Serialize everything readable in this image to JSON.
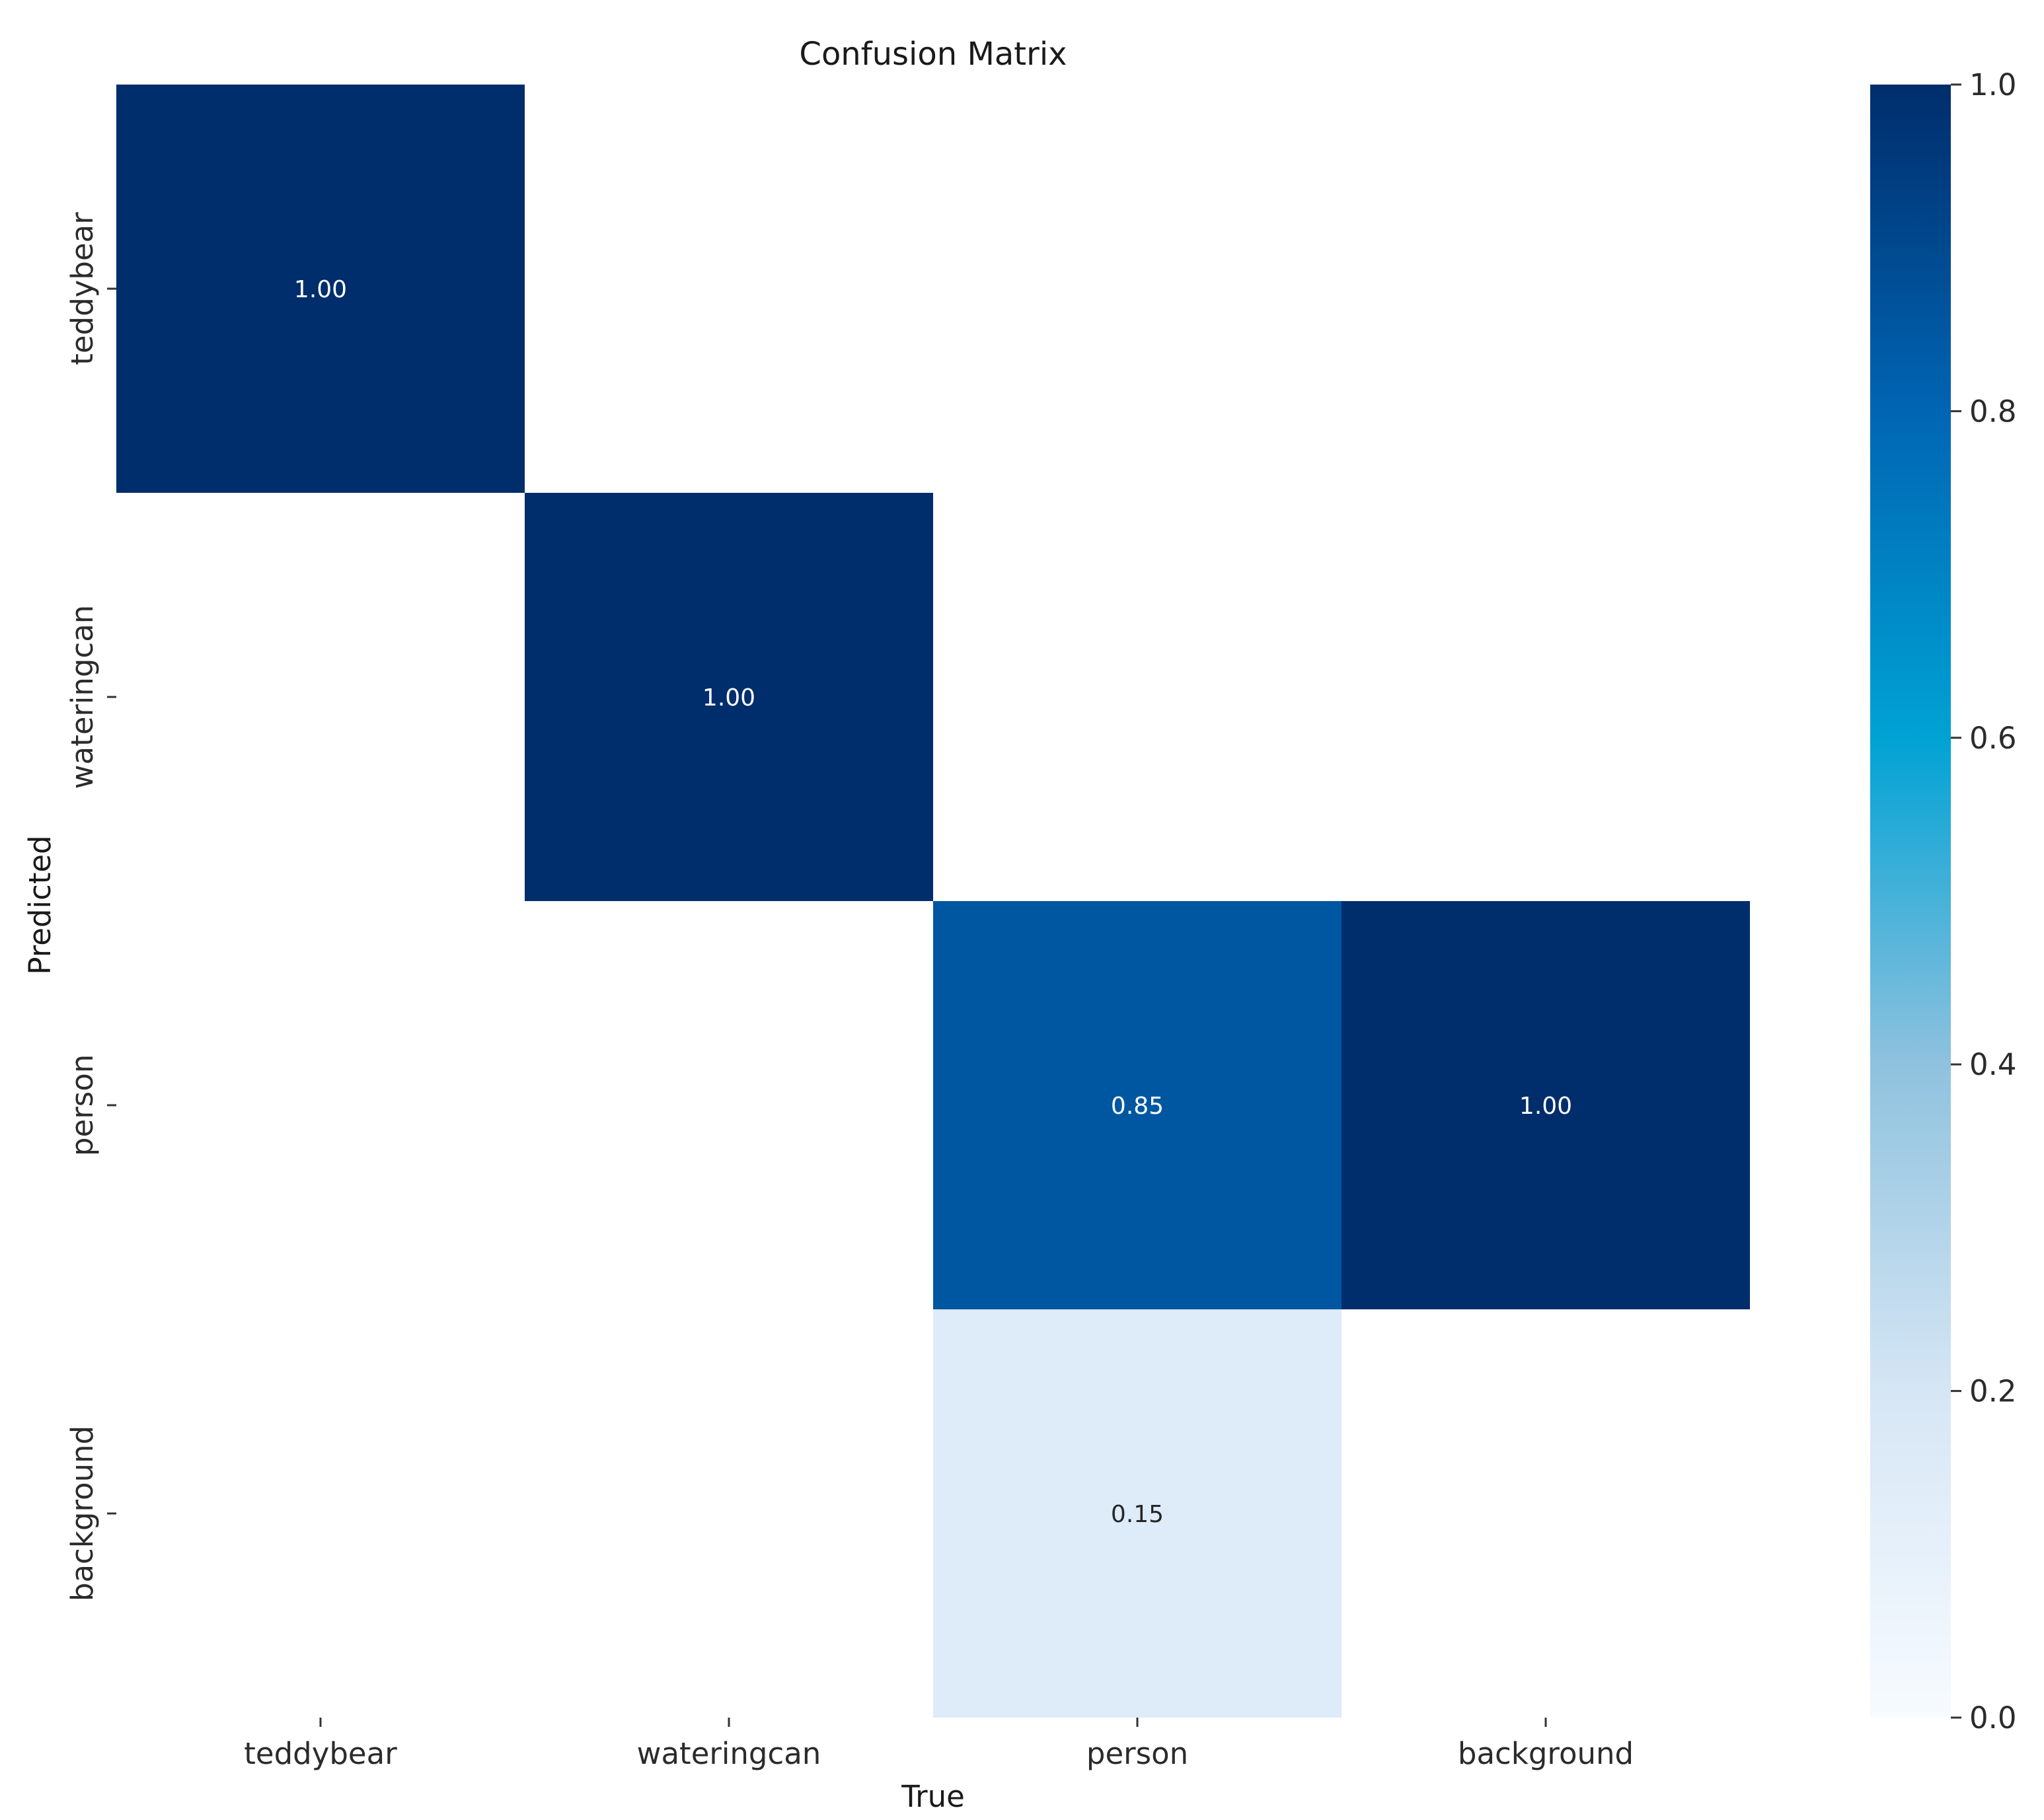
{
  "chart_data": {
    "type": "heatmap",
    "title": "Confusion Matrix",
    "xlabel": "True",
    "ylabel": "Predicted",
    "x_categories": [
      "teddybear",
      "wateringcan",
      "person",
      "background"
    ],
    "y_categories": [
      "teddybear",
      "wateringcan",
      "person",
      "background"
    ],
    "values": [
      [
        1.0,
        null,
        null,
        null
      ],
      [
        null,
        1.0,
        null,
        null
      ],
      [
        null,
        null,
        0.85,
        1.0
      ],
      [
        null,
        null,
        0.15,
        null
      ]
    ],
    "value_labels": [
      [
        "1.00",
        "",
        "",
        ""
      ],
      [
        "",
        "1.00",
        "",
        ""
      ],
      [
        "",
        "",
        "0.85",
        "1.00"
      ],
      [
        "",
        "",
        "0.15",
        ""
      ]
    ],
    "colormap": "Blues",
    "vmin": 0.0,
    "vmax": 1.0,
    "colorbar_ticks": [
      0.0,
      0.2,
      0.4,
      0.6,
      0.8,
      1.0
    ],
    "colorbar_tick_labels": [
      "0.0",
      "0.2",
      "0.4",
      "0.6",
      "0.8",
      "1.0"
    ]
  }
}
